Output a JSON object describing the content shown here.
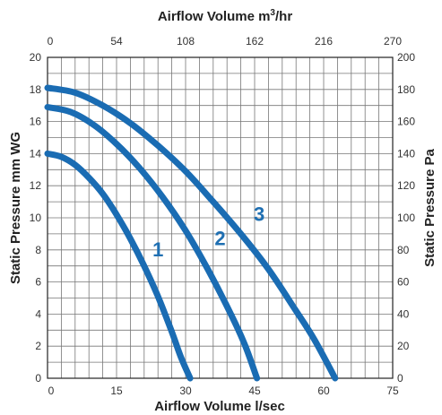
{
  "chart_data": {
    "type": "line",
    "title": "",
    "x_bottom": {
      "label": "Airflow Volume l/sec",
      "range": [
        0,
        75
      ],
      "ticks": [
        0,
        15,
        30,
        45,
        60,
        75
      ],
      "tick_labels": [
        "0",
        "15",
        "30",
        "45",
        "60",
        "75"
      ]
    },
    "x_top": {
      "label_prefix": "Airflow Volume m",
      "label_sup": "3",
      "label_suffix": "/hr",
      "range": [
        0,
        270
      ],
      "ticks": [
        0,
        54,
        108,
        162,
        216,
        270
      ],
      "tick_labels": [
        "0",
        "54",
        "108",
        "162",
        "216",
        "270"
      ]
    },
    "y_left": {
      "label": "Static Pressure mm WG",
      "range": [
        0,
        20
      ],
      "ticks": [
        0,
        2,
        4,
        6,
        8,
        10,
        12,
        14,
        16,
        18,
        20
      ],
      "tick_labels": [
        "0",
        "2",
        "4",
        "6",
        "8",
        "10",
        "12",
        "14",
        "16",
        "18",
        "20"
      ]
    },
    "y_right": {
      "label": "Static Pressure Pa",
      "range": [
        0,
        200
      ],
      "ticks": [
        0,
        20,
        40,
        60,
        80,
        100,
        120,
        140,
        160,
        180,
        200
      ],
      "tick_labels": [
        "0",
        "20",
        "40",
        "60",
        "80",
        "100",
        "120",
        "140",
        "160",
        "180",
        "200"
      ]
    },
    "grid": true,
    "minor_x_divisions": 5,
    "series": [
      {
        "name": "1",
        "label_at": [
          24.0,
          7.6
        ],
        "x": [
          0,
          3,
          6,
          9,
          12,
          15,
          18,
          21,
          24,
          27,
          29,
          31
        ],
        "y": [
          14.0,
          13.8,
          13.3,
          12.5,
          11.5,
          10.2,
          8.7,
          7.0,
          5.1,
          2.9,
          1.3,
          0.0
        ]
      },
      {
        "name": "2",
        "label_at": [
          37.5,
          8.3
        ],
        "x": [
          0,
          5,
          10,
          15,
          20,
          25,
          30,
          35,
          40,
          43,
          45.5
        ],
        "y": [
          16.9,
          16.6,
          15.8,
          14.6,
          13.1,
          11.3,
          9.2,
          6.7,
          3.9,
          2.0,
          0.0
        ]
      },
      {
        "name": "3",
        "label_at": [
          46.0,
          9.8
        ],
        "x": [
          0,
          6,
          12,
          18,
          24,
          30,
          36,
          42,
          48,
          54,
          58,
          62.5
        ],
        "y": [
          18.1,
          17.8,
          17.0,
          15.9,
          14.5,
          12.9,
          11.0,
          9.0,
          6.8,
          4.2,
          2.4,
          0.0
        ]
      }
    ],
    "colors": {
      "curve": "#1a6cb3",
      "curve_label": "#1f6fb2"
    }
  }
}
